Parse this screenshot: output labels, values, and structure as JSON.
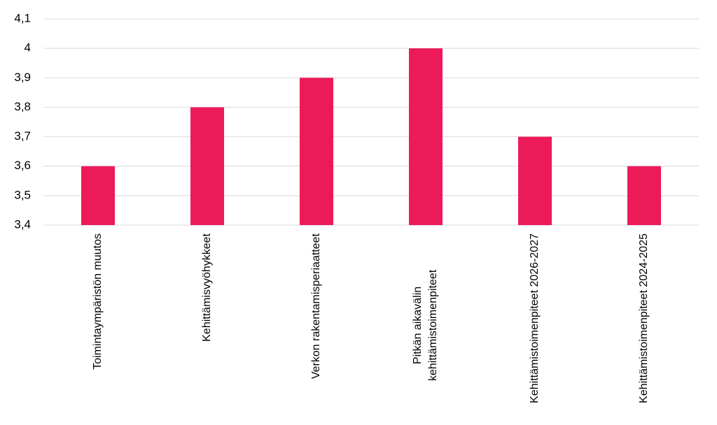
{
  "chart_data": {
    "type": "bar",
    "categories": [
      "Toimintaympäristön muutos",
      "Kehittämisvyöhykkeet",
      "Verkon rakentamisperiaatteet",
      "Pitkän aikavälin kehittämistoimenpiteet",
      "Kehittämistoimenpiteet 2026-2027",
      "Kehittämistoimenpiteet 2024-2025"
    ],
    "values": [
      3.6,
      3.8,
      3.9,
      4.0,
      3.7,
      3.6
    ],
    "color": "#ed1a5a",
    "ylim": [
      3.4,
      4.1
    ],
    "yticks": [
      {
        "value": 3.4,
        "label": "3,4"
      },
      {
        "value": 3.5,
        "label": "3,5"
      },
      {
        "value": 3.6,
        "label": "3,6"
      },
      {
        "value": 3.7,
        "label": "3,7"
      },
      {
        "value": 3.8,
        "label": "3,8"
      },
      {
        "value": 3.9,
        "label": "3,9"
      },
      4,
      {
        "value": 4.1,
        "label": "4,1"
      }
    ],
    "grid": true
  }
}
